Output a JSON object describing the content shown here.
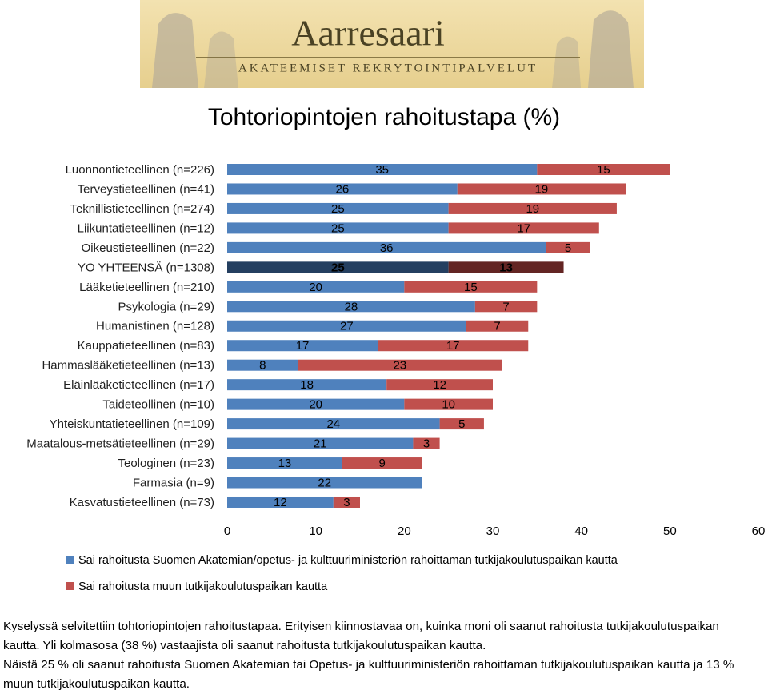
{
  "header": {
    "logo_title": "Aarresaari",
    "logo_subtitle": "AKATEEMISET REKRYTOINTIPALVELUT"
  },
  "chart_data": {
    "type": "stacked-barh",
    "title": "Tohtoriopintojen rahoitustapa (%)",
    "categories": [
      "Luonnontieteellinen (n=226)",
      "Terveystieteellinen (n=41)",
      "Teknillistieteellinen (n=274)",
      "Liikuntatieteellinen (n=12)",
      "Oikeustieteellinen (n=22)",
      "YO YHTEENSÄ (n=1308)",
      "Lääketieteellinen (n=210)",
      "Psykologia (n=29)",
      "Humanistinen (n=128)",
      "Kauppatieteellinen (n=83)",
      "Hammaslääketieteellinen (n=13)",
      "Eläinlääketieteellinen (n=17)",
      "Taideteollinen (n=10)",
      "Yhteiskuntatieteellinen (n=109)",
      "Maatalous-metsätieteellinen (n=29)",
      "Teologinen (n=23)",
      "Farmasia (n=9)",
      "Kasvatustieteellinen (n=73)"
    ],
    "series": [
      {
        "name": "Sai rahoitusta Suomen Akatemian/opetus- ja kulttuuriministeriön rahoittaman tutkijakoulutuspaikan kautta",
        "color": "#4f81bd",
        "highlight_color": "#243f60",
        "values": [
          35,
          26,
          25,
          25,
          36,
          25,
          20,
          28,
          27,
          17,
          8,
          18,
          20,
          24,
          21,
          13,
          22,
          12
        ]
      },
      {
        "name": "Sai rahoitusta muun tutkijakoulutuspaikan kautta",
        "color": "#c0504d",
        "highlight_color": "#632523",
        "values": [
          15,
          19,
          19,
          17,
          5,
          13,
          15,
          7,
          7,
          17,
          23,
          12,
          10,
          5,
          3,
          9,
          null,
          3
        ]
      }
    ],
    "highlight_index": 5,
    "xlim": [
      0,
      60
    ],
    "xticks": [
      0,
      10,
      20,
      30,
      40,
      50,
      60
    ],
    "grid": false,
    "notes": [
      "Kyselyssä selvitettiin tohtoriopintojen rahoitustapaa. Erityisen kiinnostavaa on, kuinka moni oli saanut rahoitusta tutkijakoulutuspaikan kautta. Yli kolmasosa (38 %) vastaajista oli saanut rahoitusta tutkijakoulutuspaikan kautta.",
      "Näistä 25 % oli saanut rahoitusta Suomen Akatemian tai Opetus- ja kulttuuriministeriön rahoittaman tutkijakoulutuspaikan kautta ja 13 % muun tutkijakoulutuspaikan kautta."
    ]
  }
}
